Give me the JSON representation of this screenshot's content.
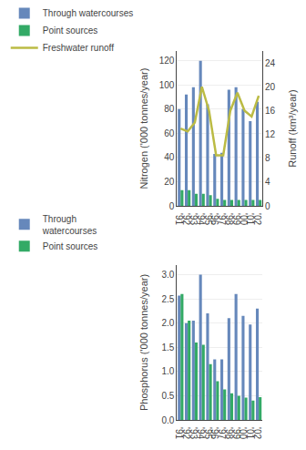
{
  "chart_data": [
    {
      "type": "bar",
      "categories": [
        "'91",
        "'92",
        "'93",
        "'94",
        "'95",
        "'96",
        "'97",
        "'98",
        "'99",
        "'00",
        "'01",
        "'02"
      ],
      "ylabel": "Nitrogen ('000 tonnes/year)",
      "y2label": "Runoff (km³/year)",
      "ylim": [
        0,
        128
      ],
      "yticks": [
        0,
        20,
        40,
        60,
        80,
        100,
        120
      ],
      "y2lim": [
        0,
        26.0
      ],
      "y2ticks": [
        0,
        4,
        8,
        12,
        16,
        20,
        24
      ],
      "grid": true,
      "legend": "top",
      "series": [
        {
          "name": "Through watercourses",
          "color": "#6688bb",
          "values": [
            80,
            92,
            98,
            120,
            84,
            43,
            44,
            96,
            98,
            80,
            70,
            86
          ]
        },
        {
          "name": "Point sources",
          "color": "#33aa66",
          "values": [
            13,
            13,
            10,
            10,
            9,
            6,
            5,
            5,
            5,
            5,
            5,
            5
          ]
        },
        {
          "name": "Freshwater runoff",
          "color": "#bbbb44",
          "type": "line",
          "axis": "y2",
          "values": [
            13,
            12.5,
            14,
            20,
            16,
            8.5,
            8.5,
            16,
            19,
            16,
            15,
            18.5
          ]
        }
      ]
    },
    {
      "type": "bar",
      "categories": [
        "'91",
        "'92",
        "'93",
        "'94",
        "'95",
        "'96",
        "'97",
        "'98",
        "'99",
        "'00",
        "'01",
        "'02"
      ],
      "ylabel": "Phosphorus ('000 tonnes/year)",
      "ylim": [
        0,
        3.2
      ],
      "yticks": [
        {
          "value": 0.0,
          "label": "0.0"
        },
        0.5,
        {
          "value": 1.0,
          "label": "1.0"
        },
        1.5,
        {
          "value": 2.0,
          "label": "2.0"
        },
        2.5,
        {
          "value": 3.0,
          "label": "3.0"
        }
      ],
      "grid": true,
      "legend": "top",
      "series": [
        {
          "name": "Through\nwatercourses",
          "color": "#6688bb",
          "values": [
            2.57,
            2.0,
            2.05,
            3.0,
            2.2,
            1.25,
            1.25,
            2.1,
            2.6,
            2.15,
            1.97,
            2.3
          ]
        },
        {
          "name": "Point sources",
          "color": "#33aa66",
          "values": [
            2.6,
            2.05,
            1.6,
            1.55,
            1.15,
            0.8,
            0.63,
            0.55,
            0.5,
            0.46,
            0.4,
            0.47
          ]
        }
      ]
    }
  ]
}
